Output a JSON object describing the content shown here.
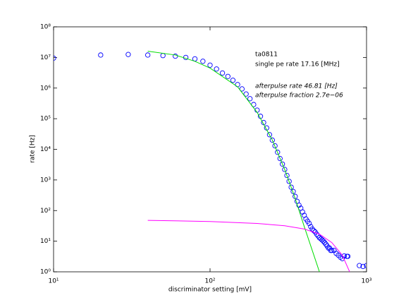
{
  "chart_data": {
    "type": "scatter",
    "xlabel": "discriminator setting [mV]",
    "ylabel": "rate [Hz]",
    "xscale": "log",
    "yscale": "log",
    "xlim": [
      10,
      1000
    ],
    "xticks": [
      {
        "value": 10,
        "label": "10¹"
      },
      {
        "value": 100,
        "label": "10²"
      },
      {
        "value": 1000,
        "label": "10³"
      }
    ],
    "ylim": [
      1,
      100000000
    ],
    "yticks": [
      {
        "value": 1,
        "label": "10⁰"
      },
      {
        "value": 10,
        "label": "10¹"
      },
      {
        "value": 100,
        "label": "10²"
      },
      {
        "value": 1000,
        "label": "10³"
      },
      {
        "value": 10000,
        "label": "10⁴"
      },
      {
        "value": 100000,
        "label": "10⁵"
      },
      {
        "value": 1000000,
        "label": "10⁶"
      },
      {
        "value": 10000000,
        "label": "10⁷"
      },
      {
        "value": 100000000,
        "label": "10⁸"
      }
    ],
    "annotations": [
      "ta0811",
      "single pe rate 17.16 [MHz]",
      "afterpulse rate 46.81 [Hz]",
      "afterpulse fraction 2.7e−06"
    ],
    "series": [
      {
        "type": "scatter",
        "color": "#0000ff",
        "x": [
          10,
          20,
          30,
          40,
          50,
          60,
          70,
          80,
          90,
          100,
          110,
          120,
          130,
          140,
          150,
          160,
          170,
          180,
          190,
          200,
          210,
          220,
          230,
          240,
          250,
          260,
          270,
          280,
          290,
          300,
          310,
          320,
          330,
          340,
          350,
          360,
          370,
          380,
          390,
          400,
          410,
          420,
          430,
          440,
          450,
          460,
          470,
          480,
          490,
          500,
          510,
          520,
          530,
          540,
          550,
          560,
          570,
          580,
          590,
          600,
          620,
          640,
          660,
          680,
          700,
          720,
          750,
          760,
          900,
          950,
          1000
        ],
        "values": [
          9500000,
          12000000,
          12500000,
          12000000,
          11500000,
          11000000,
          10000000,
          9000000,
          7500000,
          5600000,
          4200000,
          3100000,
          2400000,
          1800000,
          1300000,
          940000,
          640000,
          450000,
          290000,
          190000,
          120000,
          75000,
          50000,
          30000,
          20000,
          13000,
          8000,
          5000,
          3300,
          2200,
          1400,
          900,
          580,
          420,
          290,
          200,
          150,
          120,
          90,
          70,
          53,
          45,
          38,
          30,
          25,
          22,
          20,
          17,
          15,
          13,
          12,
          11,
          10,
          9,
          8,
          7,
          6,
          6,
          5,
          5,
          5,
          4,
          3.5,
          3,
          2.7,
          3.3,
          3.2,
          3.2,
          1.6,
          1.5,
          1.6
        ]
      },
      {
        "type": "line",
        "color": "#00dd00",
        "x": [
          40,
          60,
          80,
          100,
          150,
          200,
          250,
          300,
          350,
          400,
          450,
          500
        ],
        "values": [
          16000000,
          12000000,
          7500000,
          4500000,
          1100000,
          160000,
          20000,
          2200,
          250,
          30,
          5,
          1
        ]
      },
      {
        "type": "line",
        "color": "#ff00ff",
        "x": [
          40,
          100,
          200,
          300,
          400,
          500,
          600,
          700,
          780
        ],
        "values": [
          48,
          44,
          38,
          32,
          25,
          17,
          9,
          3.5,
          1
        ]
      }
    ]
  }
}
